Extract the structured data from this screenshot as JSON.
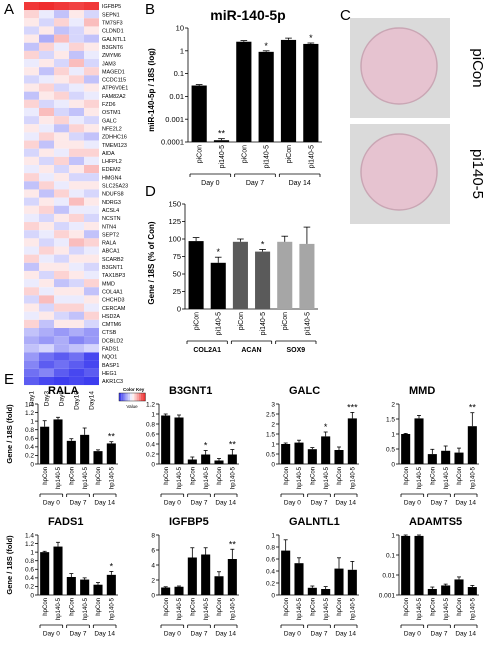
{
  "panel_letters": {
    "a": "A",
    "b": "B",
    "c": "C",
    "d": "D",
    "e": "E"
  },
  "heatmap": {
    "genes": [
      "IGFBP5",
      "SEPN1",
      "TM7SF3",
      "CLDND1",
      "GALNTL1",
      "B3GNT6",
      "ZMYM6",
      "JAM3",
      "MAGED1",
      "CCDC115",
      "ATP6V0E1",
      "FAM82A2",
      "FZD6",
      "OSTM1",
      "GALC",
      "NFE2L2",
      "ZDHHC16",
      "TMEM123",
      "AIDA",
      "LHFPL2",
      "EDEM2",
      "HMGN4",
      "SLC25A23",
      "NDUFS8",
      "NDRG3",
      "ACSL4",
      "NCSTN",
      "NTN4",
      "SEPT2",
      "RALA",
      "ABCA1",
      "SCARB2",
      "B3GNT1",
      "TAX1BP3",
      "MMD",
      "COL4A1",
      "CHCHD3",
      "CERCAM",
      "HSD2A",
      "CMTM6",
      "CTSB",
      "DCBLD2",
      "FADS1",
      "NQO1",
      "BASP1",
      "HEG1",
      "AKR1C3"
    ],
    "days": [
      "Day1",
      "Day3",
      "Day6",
      "Day10",
      "Day14"
    ],
    "color_key_title": "Color Key",
    "color_key_label": "Value",
    "color_low": "#3333ee",
    "color_mid": "#ffffff",
    "color_high": "#ee2222",
    "values": [
      [
        0.9,
        0.95,
        0.9,
        0.85,
        0.9
      ],
      [
        0.2,
        -0.1,
        -0.3,
        0.1,
        -0.2
      ],
      [
        0.1,
        -0.2,
        0.2,
        -0.1,
        0.3
      ],
      [
        -0.2,
        0.1,
        -0.3,
        -0.2,
        0.1
      ],
      [
        0.1,
        -0.4,
        0.3,
        -0.2,
        -0.3
      ],
      [
        -0.3,
        0.2,
        -0.1,
        0.2,
        0.1
      ],
      [
        0.2,
        -0.2,
        0.1,
        -0.3,
        -0.1
      ],
      [
        -0.1,
        0.1,
        -0.2,
        0.3,
        -0.2
      ],
      [
        0.1,
        -0.3,
        0.2,
        -0.1,
        0.2
      ],
      [
        -0.2,
        -0.1,
        0.1,
        0.2,
        -0.3
      ],
      [
        0.1,
        0.2,
        -0.2,
        -0.1,
        0.1
      ],
      [
        -0.3,
        0.1,
        0.2,
        -0.2,
        -0.1
      ],
      [
        0.2,
        -0.2,
        -0.1,
        0.1,
        0.2
      ],
      [
        -0.1,
        0.3,
        -0.2,
        -0.3,
        0.1
      ],
      [
        -0.2,
        0.1,
        0.2,
        -0.1,
        -0.2
      ],
      [
        0.1,
        -0.1,
        -0.3,
        0.2,
        0.1
      ],
      [
        -0.1,
        0.2,
        0.1,
        -0.2,
        -0.3
      ],
      [
        0.2,
        -0.3,
        0.1,
        0.1,
        -0.1
      ],
      [
        -0.2,
        0.1,
        -0.1,
        0.2,
        0.2
      ],
      [
        0.1,
        -0.2,
        0.2,
        -0.3,
        -0.1
      ],
      [
        -0.1,
        0.1,
        -0.2,
        0.1,
        0.3
      ],
      [
        0.2,
        -0.1,
        0.1,
        -0.2,
        -0.2
      ],
      [
        -0.3,
        0.2,
        -0.1,
        0.1,
        0.1
      ],
      [
        0.1,
        -0.3,
        0.2,
        -0.1,
        -0.2
      ],
      [
        -0.2,
        0.1,
        -0.1,
        0.3,
        0.1
      ],
      [
        0.1,
        0.2,
        -0.3,
        -0.1,
        -0.1
      ],
      [
        -0.1,
        -0.2,
        0.1,
        0.2,
        -0.2
      ],
      [
        0.2,
        0.1,
        -0.2,
        -0.1,
        0.1
      ],
      [
        -0.2,
        -0.1,
        0.2,
        0.1,
        -0.3
      ],
      [
        0.1,
        -0.2,
        -0.1,
        0.3,
        0.2
      ],
      [
        -0.1,
        0.2,
        0.1,
        -0.2,
        -0.1
      ],
      [
        0.2,
        -0.1,
        -0.2,
        0.1,
        0.1
      ],
      [
        -0.3,
        0.1,
        0.1,
        -0.1,
        -0.2
      ],
      [
        0.1,
        -0.2,
        0.2,
        0.1,
        -0.1
      ],
      [
        -0.1,
        0.1,
        -0.3,
        -0.2,
        0.2
      ],
      [
        0.2,
        -0.1,
        0.1,
        0.1,
        -0.3
      ],
      [
        -0.2,
        0.3,
        -0.1,
        -0.1,
        0.1
      ],
      [
        0.1,
        -0.2,
        0.2,
        0.2,
        -0.1
      ],
      [
        -0.1,
        0.1,
        -0.2,
        -0.3,
        0.2
      ],
      [
        0.2,
        -0.3,
        0.1,
        0.1,
        -0.2
      ],
      [
        -0.3,
        -0.4,
        -0.5,
        -0.4,
        -0.5
      ],
      [
        -0.4,
        -0.5,
        -0.4,
        -0.6,
        -0.5
      ],
      [
        -0.3,
        -0.2,
        -0.4,
        -0.3,
        -0.2
      ],
      [
        -0.5,
        -0.7,
        -0.8,
        -0.7,
        -0.9
      ],
      [
        -0.6,
        -0.8,
        -0.7,
        -0.8,
        -0.9
      ],
      [
        -0.7,
        -0.6,
        -0.8,
        -0.9,
        -0.8
      ],
      [
        -0.8,
        -0.9,
        -0.95,
        -0.9,
        -0.95
      ]
    ]
  },
  "panel_b": {
    "title": "miR-140-5p",
    "ylabel": "miR-140-5p / 18S (log)",
    "type": "bar",
    "scale": "log",
    "ylim": [
      0.0001,
      10
    ],
    "yticks": [
      "10",
      "1",
      "0.1",
      "0.01",
      "0.001",
      "0.0001"
    ],
    "categories": [
      "piCon",
      "pi140-5",
      "piCon",
      "pi140-5",
      "piCon",
      "pi140-5"
    ],
    "groups": [
      "Day 0",
      "Day 7",
      "Day 14"
    ],
    "values": [
      0.03,
      0.00012,
      2.5,
      0.9,
      3.0,
      2.0
    ],
    "errors": [
      0.003,
      2e-05,
      0.3,
      0.1,
      0.6,
      0.2
    ],
    "significance": [
      "",
      "**",
      "",
      "*",
      "",
      "*"
    ]
  },
  "panel_c": {
    "labels": [
      "piCon",
      "pi140-5"
    ]
  },
  "panel_d": {
    "ylabel": "Gene / 18S (% of Con)",
    "type": "bar",
    "ylim": [
      0,
      150
    ],
    "yticks": [
      "150",
      "125",
      "100",
      "75",
      "50",
      "25",
      "0"
    ],
    "categories": [
      "piCon",
      "pi140-5",
      "piCon",
      "pi140-5",
      "piCon",
      "pi140-5"
    ],
    "groups": [
      "COL2A1",
      "ACAN",
      "SOX9"
    ],
    "values": [
      97,
      66,
      96,
      82,
      96,
      93
    ],
    "errors": [
      5,
      8,
      4,
      3,
      8,
      24
    ],
    "significance": [
      "",
      "*",
      "",
      "*",
      "",
      ""
    ]
  },
  "panel_e": {
    "ylabel": "Gene / 18S (fold)",
    "categories": [
      "hpCon",
      "hp140-5",
      "hpCon",
      "hp140-5",
      "hpCon",
      "hp140-5"
    ],
    "groups": [
      "Day 0",
      "Day 7",
      "Day 14"
    ],
    "charts": [
      {
        "title": "RALA",
        "type": "bar",
        "ylim": [
          0,
          1.4
        ],
        "yticks": [
          "1.4",
          "1.2",
          "1",
          "0.8",
          "0.6",
          "0.4",
          "0.2",
          "0"
        ],
        "values": [
          0.87,
          1.04,
          0.54,
          0.68,
          0.3,
          0.48
        ],
        "errors": [
          0.14,
          0.05,
          0.05,
          0.16,
          0.03,
          0.04
        ],
        "significance": [
          "",
          "",
          "",
          "",
          "",
          "**"
        ]
      },
      {
        "title": "B3GNT1",
        "type": "bar",
        "ylim": [
          0,
          1.2
        ],
        "yticks": [
          "1.2",
          "1",
          "0.8",
          "0.6",
          "0.4",
          "0.2",
          "0"
        ],
        "values": [
          0.97,
          0.93,
          0.09,
          0.19,
          0.07,
          0.19
        ],
        "errors": [
          0.03,
          0.05,
          0.05,
          0.08,
          0.04,
          0.1
        ],
        "significance": [
          "",
          "",
          "",
          "*",
          "",
          "**"
        ]
      },
      {
        "title": "GALC",
        "type": "bar",
        "ylim": [
          0,
          3
        ],
        "yticks": [
          "3",
          "2.5",
          "2",
          "1.5",
          "1",
          "0.5",
          "0"
        ],
        "values": [
          1.0,
          1.07,
          0.74,
          1.38,
          0.7,
          2.28
        ],
        "errors": [
          0.05,
          0.12,
          0.08,
          0.22,
          0.15,
          0.3
        ],
        "significance": [
          "",
          "",
          "",
          "*",
          "",
          "***"
        ]
      },
      {
        "title": "MMD",
        "type": "bar",
        "ylim": [
          0,
          2
        ],
        "yticks": [
          "2",
          "1.5",
          "1",
          "0.5",
          "0"
        ],
        "values": [
          1.0,
          1.52,
          0.33,
          0.44,
          0.38,
          1.26
        ],
        "errors": [
          0.02,
          0.1,
          0.16,
          0.16,
          0.15,
          0.45
        ],
        "significance": [
          "",
          "",
          "",
          "",
          "",
          "**"
        ]
      },
      {
        "title": "FADS1",
        "type": "bar",
        "ylim": [
          0,
          1.4
        ],
        "yticks": [
          "1.4",
          "1.2",
          "1",
          "0.8",
          "0.6",
          "0.4",
          "0.2",
          "0"
        ],
        "values": [
          1.0,
          1.13,
          0.42,
          0.36,
          0.24,
          0.47
        ],
        "errors": [
          0.02,
          0.1,
          0.08,
          0.04,
          0.05,
          0.08
        ],
        "significance": [
          "",
          "",
          "",
          "",
          "",
          "*"
        ]
      },
      {
        "title": "IGFBP5",
        "type": "bar",
        "ylim": [
          0,
          8
        ],
        "yticks": [
          "8",
          "6",
          "4",
          "2",
          "0"
        ],
        "values": [
          1.0,
          1.1,
          5.0,
          5.4,
          2.5,
          4.8
        ],
        "errors": [
          0.1,
          0.1,
          1.3,
          0.9,
          0.6,
          1.3
        ],
        "significance": [
          "",
          "",
          "",
          "",
          "",
          "**"
        ]
      },
      {
        "title": "GALNTL1",
        "type": "bar",
        "ylim": [
          0,
          1
        ],
        "yticks": [
          "1",
          "0.8",
          "0.6",
          "0.4",
          "0.2",
          "0"
        ],
        "values": [
          0.74,
          0.53,
          0.12,
          0.1,
          0.44,
          0.42
        ],
        "errors": [
          0.18,
          0.09,
          0.03,
          0.04,
          0.18,
          0.14
        ],
        "significance": [
          "",
          "",
          "",
          "",
          "",
          ""
        ]
      },
      {
        "title": "ADAMTS5",
        "type": "bar",
        "scale": "log",
        "ylim": [
          0.001,
          1
        ],
        "yticks": [
          "1",
          "0.1",
          "0.01",
          "0.001"
        ],
        "values": [
          0.9,
          0.9,
          0.002,
          0.003,
          0.006,
          0.0025
        ],
        "errors": [
          0.1,
          0.1,
          0.0005,
          0.0005,
          0.002,
          0.0005
        ],
        "significance": [
          "",
          "",
          "",
          "",
          "",
          ""
        ]
      }
    ]
  },
  "colors": {
    "bar_black": "#000000",
    "bar_dark_gray": "#5a5a5a",
    "bar_light_gray": "#a6a6a6",
    "dish_fill": "#e6c3d0",
    "dish_bg": "#dadada"
  }
}
